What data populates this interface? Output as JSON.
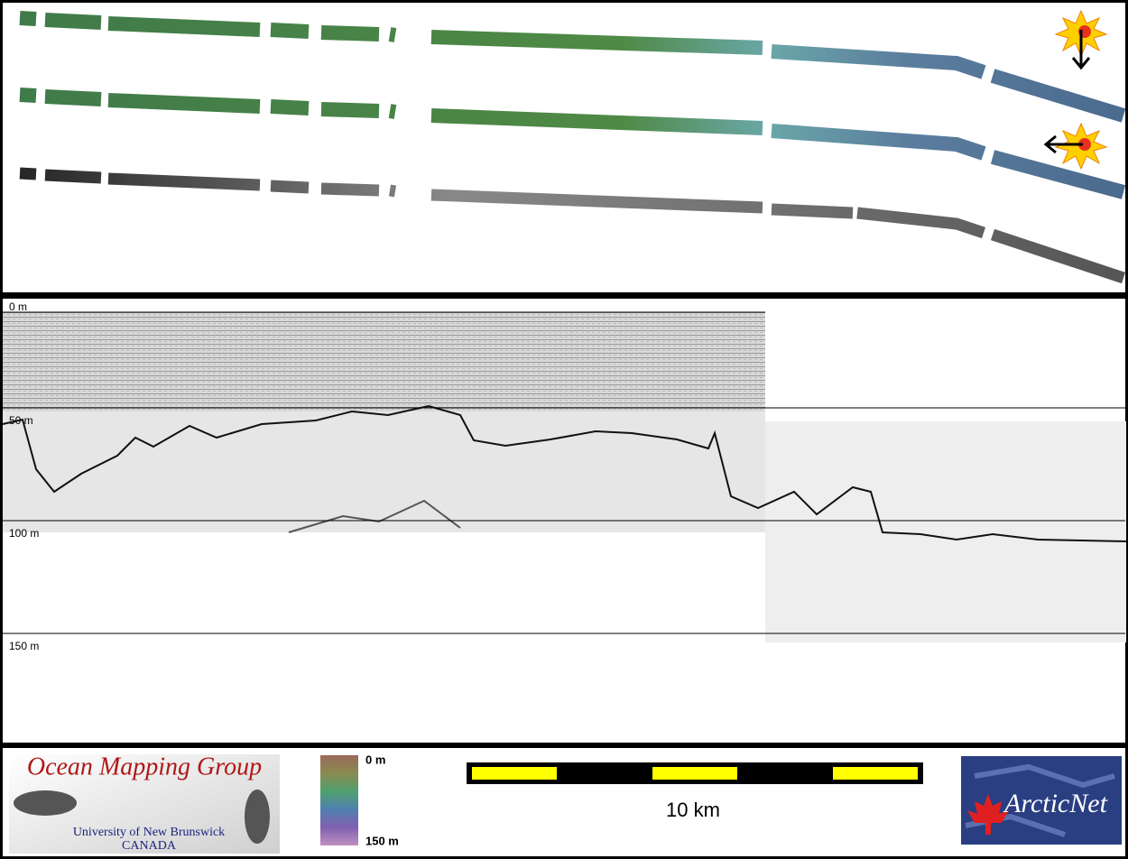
{
  "profile": {
    "depth_labels": [
      "0 m",
      "50 m",
      "100 m",
      "150 m"
    ]
  },
  "footer": {
    "logo": {
      "title": "Ocean Mapping Group",
      "line1": "University of New Brunswick",
      "line2": "CANADA"
    },
    "color_scale": {
      "top": "0 m",
      "bottom": "150 m"
    },
    "scale_bar": {
      "label": "10 km"
    },
    "partner_logo": {
      "text": "ArcticNet"
    }
  }
}
